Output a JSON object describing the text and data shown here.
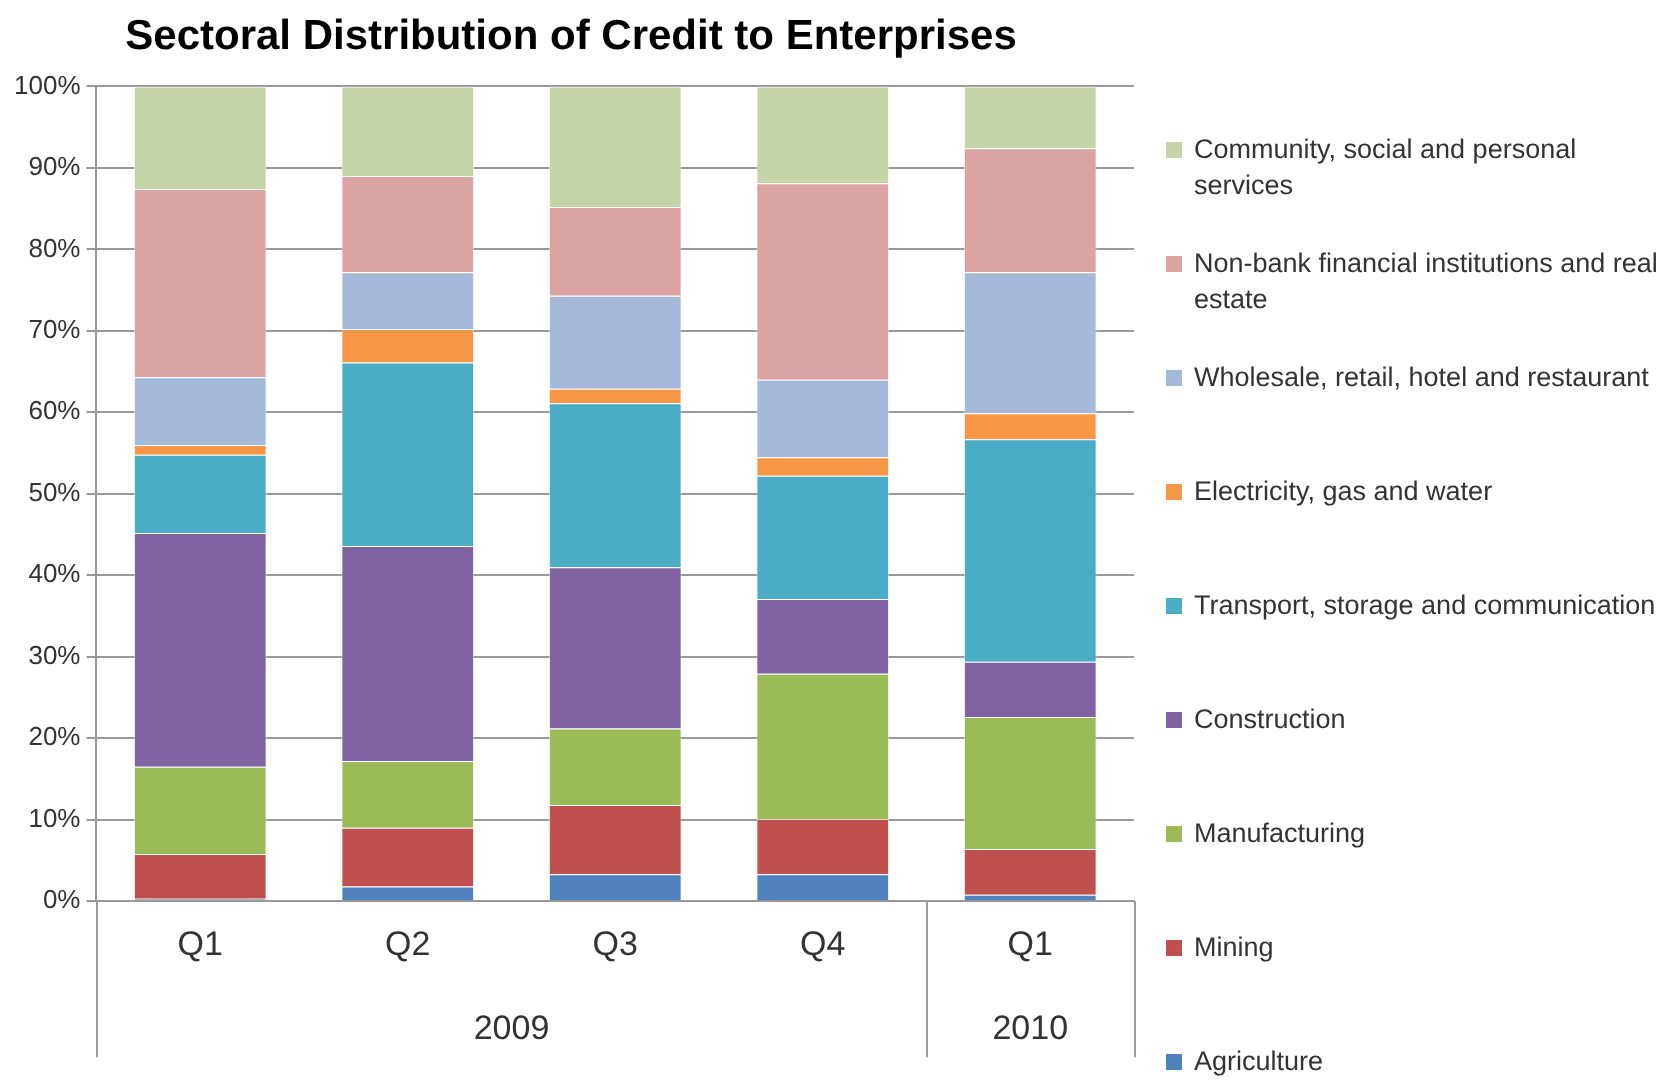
{
  "chart_data": {
    "type": "bar",
    "title": "Sectoral Distribution of Credit to Enterprises",
    "categories": [
      "Q1",
      "Q2",
      "Q3",
      "Q4",
      "Q1"
    ],
    "annotations": [
      "2009",
      "2010"
    ],
    "stacked": true,
    "ylim": [
      0,
      100
    ],
    "yticks": [
      {
        "value": 0,
        "label": "0%"
      },
      {
        "value": 10,
        "label": "10%"
      },
      {
        "value": 20,
        "label": "20%"
      },
      {
        "value": 30,
        "label": "30%"
      },
      {
        "value": 40,
        "label": "40%"
      },
      {
        "value": 50,
        "label": "50%"
      },
      {
        "value": 60,
        "label": "60%"
      },
      {
        "value": 70,
        "label": "70%"
      },
      {
        "value": 80,
        "label": "80%"
      },
      {
        "value": 90,
        "label": "90%"
      },
      {
        "value": 100,
        "label": "100%"
      }
    ],
    "grid": "y",
    "legend": "right",
    "series": [
      {
        "name": "Agriculture",
        "color": "#4f81bd",
        "values": [
          0.3,
          1.8,
          3.3,
          3.3,
          0.8
        ]
      },
      {
        "name": "Mining",
        "color": "#c0504d",
        "values": [
          5.5,
          7.2,
          8.5,
          6.8,
          5.6
        ]
      },
      {
        "name": "Manufacturing",
        "color": "#9bbb59",
        "values": [
          10.7,
          8.2,
          9.4,
          17.8,
          16.2
        ]
      },
      {
        "name": "Construction",
        "color": "#8064a2",
        "values": [
          28.7,
          26.4,
          19.8,
          9.2,
          6.8
        ]
      },
      {
        "name": "Transport, storage and communication",
        "color": "#4bacc6",
        "values": [
          9.6,
          22.5,
          20.1,
          15.1,
          27.3
        ]
      },
      {
        "name": "Electricity, gas and water",
        "color": "#f79646",
        "values": [
          1.2,
          4.1,
          1.8,
          2.3,
          3.2
        ]
      },
      {
        "name": "Wholesale, retail, hotel and restaurant",
        "color": "#a5b9da",
        "values": [
          8.3,
          7.0,
          11.4,
          9.5,
          17.3
        ]
      },
      {
        "name": "Non-bank financial institutions and real estate",
        "color": "#dba3a2",
        "values": [
          23.1,
          11.8,
          10.9,
          24.1,
          15.2
        ]
      },
      {
        "name": "Community, social and personal services",
        "color": "#c5d5a8",
        "values": [
          12.6,
          11.0,
          14.8,
          11.9,
          7.6
        ]
      }
    ]
  }
}
